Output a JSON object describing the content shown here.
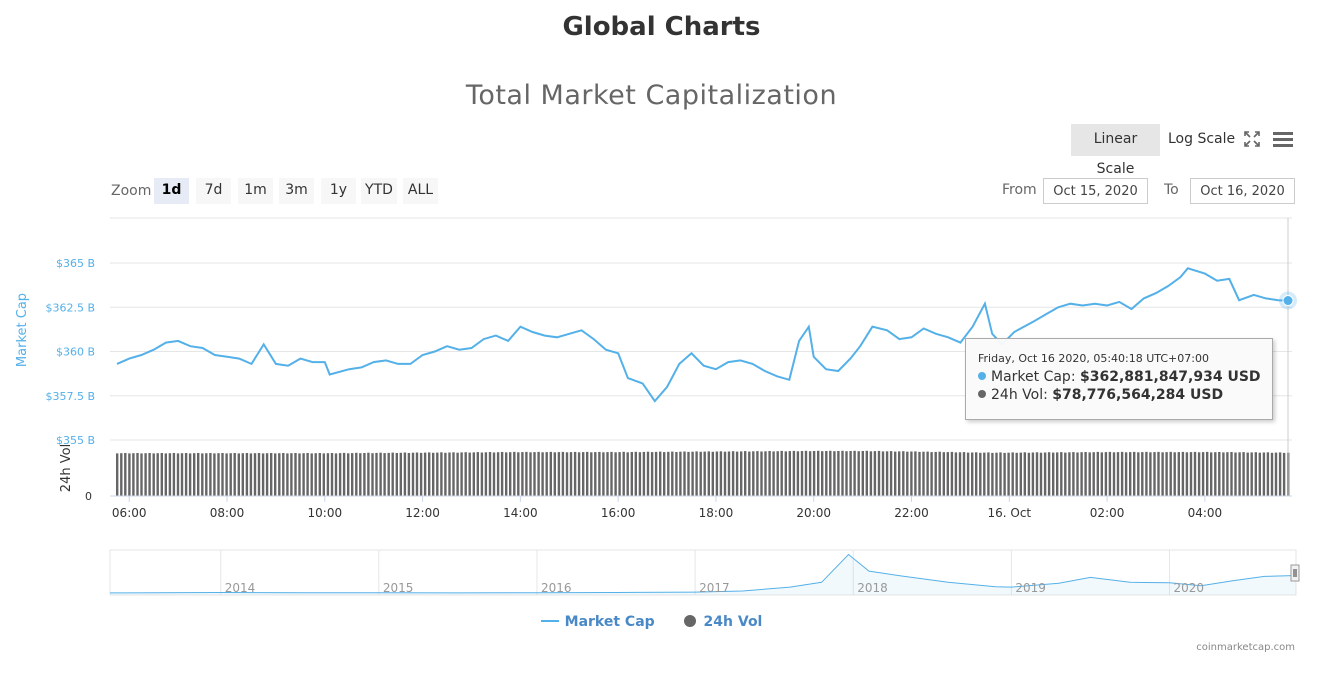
{
  "page_title": "Global Charts",
  "toolbar": {
    "linear_scale": "Linear Scale",
    "log_scale": "Log Scale",
    "fullscreen_icon": "expand-icon",
    "menu_icon": "hamburger-menu-icon"
  },
  "range_selector": {
    "zoom_label": "Zoom",
    "buttons": [
      "1d",
      "7d",
      "1m",
      "3m",
      "1y",
      "YTD",
      "ALL"
    ],
    "active": "1d",
    "from_label": "From",
    "from_value": "Oct 15, 2020",
    "to_label": "To",
    "to_value": "Oct 16, 2020"
  },
  "tooltip": {
    "date": "Friday, Oct 16 2020, 05:40:18 UTC+07:00",
    "market_cap_label": "Market Cap:",
    "market_cap_value": "$362,881,847,934 USD",
    "volume_label": "24h Vol:",
    "volume_value": "$78,776,564,284 USD"
  },
  "legend": {
    "market_cap": "Market Cap",
    "volume": "24h Vol"
  },
  "credits": "coinmarketcap.com",
  "colors": {
    "market_cap": "#54b0e8",
    "volume": "#666666",
    "active_range_bg": "#e6ebf5",
    "active_scale_bg": "#e6e6e6"
  },
  "chart_data": {
    "type": "line",
    "title": "Total Market Capitalization",
    "x_tick_labels": [
      "06:00",
      "08:00",
      "10:00",
      "12:00",
      "14:00",
      "16:00",
      "18:00",
      "20:00",
      "22:00",
      "16. Oct",
      "02:00",
      "04:00"
    ],
    "x_start_hour": 5.75,
    "x_end_hour": 29.7,
    "series": [
      {
        "name": "Market Cap",
        "axis": "Market Cap",
        "y_ticks": [
          "$355 B",
          "$357.5 B",
          "$360 B",
          "$362.5 B",
          "$365 B"
        ],
        "ylim": [
          355,
          365
        ],
        "points": [
          [
            5.75,
            359.3
          ],
          [
            6.0,
            359.6
          ],
          [
            6.25,
            359.8
          ],
          [
            6.5,
            360.1
          ],
          [
            6.75,
            360.5
          ],
          [
            7.0,
            360.6
          ],
          [
            7.25,
            360.3
          ],
          [
            7.5,
            360.2
          ],
          [
            7.75,
            359.8
          ],
          [
            8.0,
            359.7
          ],
          [
            8.25,
            359.6
          ],
          [
            8.5,
            359.3
          ],
          [
            8.75,
            360.4
          ],
          [
            9.0,
            359.3
          ],
          [
            9.25,
            359.2
          ],
          [
            9.5,
            359.6
          ],
          [
            9.75,
            359.4
          ],
          [
            10.0,
            359.4
          ],
          [
            10.1,
            358.7
          ],
          [
            10.5,
            359.0
          ],
          [
            10.75,
            359.1
          ],
          [
            11.0,
            359.4
          ],
          [
            11.25,
            359.5
          ],
          [
            11.5,
            359.3
          ],
          [
            11.75,
            359.3
          ],
          [
            12.0,
            359.8
          ],
          [
            12.25,
            360.0
          ],
          [
            12.5,
            360.3
          ],
          [
            12.75,
            360.1
          ],
          [
            13.0,
            360.2
          ],
          [
            13.25,
            360.7
          ],
          [
            13.5,
            360.9
          ],
          [
            13.75,
            360.6
          ],
          [
            14.0,
            361.4
          ],
          [
            14.25,
            361.1
          ],
          [
            14.5,
            360.9
          ],
          [
            14.75,
            360.8
          ],
          [
            15.0,
            361.0
          ],
          [
            15.25,
            361.2
          ],
          [
            15.5,
            360.7
          ],
          [
            15.75,
            360.1
          ],
          [
            16.0,
            359.9
          ],
          [
            16.2,
            358.5
          ],
          [
            16.5,
            358.2
          ],
          [
            16.75,
            357.2
          ],
          [
            17.0,
            358.0
          ],
          [
            17.25,
            359.3
          ],
          [
            17.5,
            359.9
          ],
          [
            17.75,
            359.2
          ],
          [
            18.0,
            359.0
          ],
          [
            18.25,
            359.4
          ],
          [
            18.5,
            359.5
          ],
          [
            18.75,
            359.3
          ],
          [
            19.0,
            358.9
          ],
          [
            19.25,
            358.6
          ],
          [
            19.5,
            358.4
          ],
          [
            19.7,
            360.6
          ],
          [
            19.9,
            361.4
          ],
          [
            20.0,
            359.7
          ],
          [
            20.25,
            359.0
          ],
          [
            20.5,
            358.9
          ],
          [
            20.75,
            359.6
          ],
          [
            20.95,
            360.3
          ],
          [
            21.2,
            361.4
          ],
          [
            21.5,
            361.2
          ],
          [
            21.75,
            360.7
          ],
          [
            22.0,
            360.8
          ],
          [
            22.25,
            361.3
          ],
          [
            22.5,
            361.0
          ],
          [
            22.75,
            360.8
          ],
          [
            23.0,
            360.5
          ],
          [
            23.25,
            361.4
          ],
          [
            23.5,
            362.7
          ],
          [
            23.65,
            361.0
          ],
          [
            23.85,
            360.4
          ],
          [
            24.1,
            361.1
          ],
          [
            24.5,
            361.7
          ],
          [
            24.75,
            362.1
          ],
          [
            25.0,
            362.5
          ],
          [
            25.25,
            362.7
          ],
          [
            25.5,
            362.6
          ],
          [
            25.75,
            362.7
          ],
          [
            26.0,
            362.6
          ],
          [
            26.25,
            362.8
          ],
          [
            26.5,
            362.4
          ],
          [
            26.75,
            363.0
          ],
          [
            27.0,
            363.3
          ],
          [
            27.25,
            363.7
          ],
          [
            27.5,
            364.2
          ],
          [
            27.65,
            364.7
          ],
          [
            28.0,
            364.4
          ],
          [
            28.25,
            364.0
          ],
          [
            28.5,
            364.1
          ],
          [
            28.7,
            362.9
          ],
          [
            29.0,
            363.2
          ],
          [
            29.25,
            363.0
          ],
          [
            29.5,
            362.9
          ],
          [
            29.7,
            362.88
          ]
        ]
      },
      {
        "name": "24h Vol",
        "axis": "24h Vol",
        "y_ticks": [
          "0"
        ],
        "type": "column",
        "ylim": [
          0,
          100
        ],
        "relative_levels": [
          [
            5.75,
            76
          ],
          [
            8.0,
            76
          ],
          [
            10.0,
            76
          ],
          [
            12.0,
            77
          ],
          [
            14.0,
            78
          ],
          [
            16.0,
            78
          ],
          [
            18.0,
            79
          ],
          [
            20.0,
            80
          ],
          [
            21.0,
            80
          ],
          [
            22.0,
            79
          ],
          [
            23.5,
            77
          ],
          [
            24.0,
            77
          ],
          [
            26.0,
            78
          ],
          [
            28.0,
            78
          ],
          [
            29.7,
            77
          ]
        ]
      }
    ],
    "navigator": {
      "x_tick_labels": [
        "2014",
        "2015",
        "2016",
        "2017",
        "2018",
        "2019",
        "2020"
      ],
      "x_start_year": 2013.3,
      "x_end_year": 2020.8,
      "points": [
        [
          2013.3,
          1.5
        ],
        [
          2014.0,
          10
        ],
        [
          2014.5,
          6
        ],
        [
          2015.0,
          4
        ],
        [
          2015.5,
          3
        ],
        [
          2016.0,
          6
        ],
        [
          2016.5,
          10
        ],
        [
          2017.0,
          18
        ],
        [
          2017.3,
          40
        ],
        [
          2017.6,
          120
        ],
        [
          2017.8,
          220
        ],
        [
          2017.97,
          790
        ],
        [
          2018.1,
          450
        ],
        [
          2018.3,
          350
        ],
        [
          2018.6,
          220
        ],
        [
          2018.9,
          130
        ],
        [
          2019.0,
          120
        ],
        [
          2019.3,
          200
        ],
        [
          2019.5,
          320
        ],
        [
          2019.75,
          220
        ],
        [
          2020.0,
          210
        ],
        [
          2020.2,
          150
        ],
        [
          2020.4,
          250
        ],
        [
          2020.6,
          340
        ],
        [
          2020.8,
          360
        ]
      ]
    },
    "grid": true,
    "legend_position": "bottom-center"
  }
}
